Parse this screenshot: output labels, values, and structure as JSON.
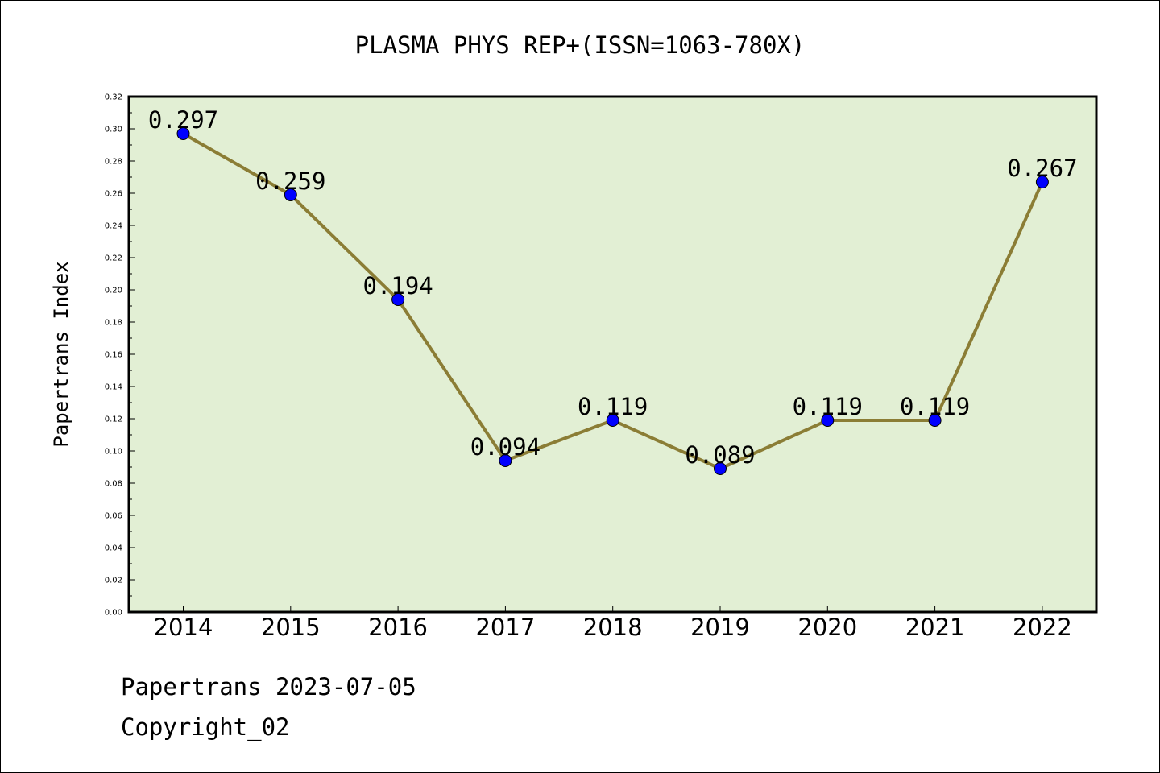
{
  "chart_data": {
    "type": "line",
    "title": "PLASMA PHYS REP+(ISSN=1063-780X)",
    "xlabel": "",
    "ylabel": "Papertrans Index",
    "categories": [
      "2014",
      "2015",
      "2016",
      "2017",
      "2018",
      "2019",
      "2020",
      "2021",
      "2022"
    ],
    "series": [
      {
        "values": [
          0.297,
          0.259,
          0.194,
          0.094,
          0.119,
          0.089,
          0.119,
          0.119,
          0.267
        ],
        "data_labels": [
          "0.297",
          "0.259",
          "0.194",
          "0.094",
          "0.119",
          "0.089",
          "0.119",
          "0.119",
          "0.267"
        ]
      }
    ],
    "ylim": [
      0,
      0.32
    ],
    "yticks": [
      "0.00",
      "0.02",
      "0.04",
      "0.06",
      "0.08",
      "0.10",
      "0.12",
      "0.14",
      "0.16",
      "0.18",
      "0.20",
      "0.22",
      "0.24",
      "0.26",
      "0.28",
      "0.30",
      "0.32"
    ],
    "grid": false,
    "colors": {
      "plot_background": "#e2efd4",
      "line": "#8b7d35",
      "marker": "#0000ff"
    }
  },
  "footer": {
    "source": "Papertrans 2023-07-05",
    "copyright": "Copyright_02"
  }
}
